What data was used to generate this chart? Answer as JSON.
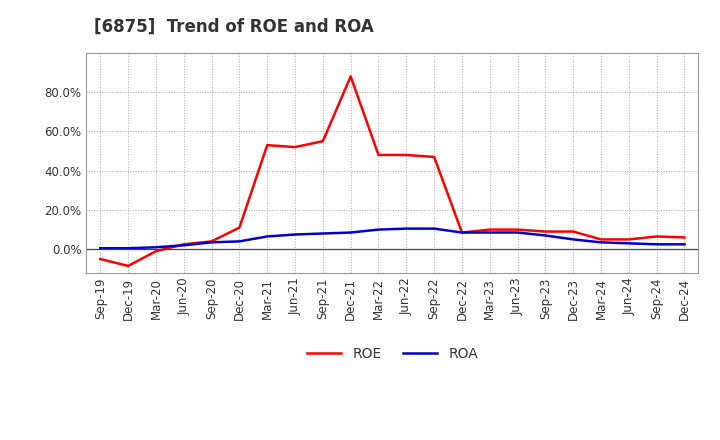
{
  "title": "[6875]  Trend of ROE and ROA",
  "x_labels": [
    "Sep-19",
    "Dec-19",
    "Mar-20",
    "Jun-20",
    "Sep-20",
    "Dec-20",
    "Mar-21",
    "Jun-21",
    "Sep-21",
    "Dec-21",
    "Mar-22",
    "Jun-22",
    "Sep-22",
    "Dec-22",
    "Mar-23",
    "Jun-23",
    "Sep-23",
    "Dec-23",
    "Mar-24",
    "Jun-24",
    "Sep-24",
    "Dec-24"
  ],
  "roe": [
    -5.0,
    -8.5,
    -1.0,
    2.5,
    4.0,
    11.0,
    53.0,
    52.0,
    55.0,
    88.0,
    48.0,
    48.0,
    47.0,
    8.5,
    10.0,
    10.0,
    9.0,
    9.0,
    5.0,
    5.0,
    6.5,
    6.0
  ],
  "roa": [
    0.5,
    0.5,
    1.0,
    2.0,
    3.5,
    4.0,
    6.5,
    7.5,
    8.0,
    8.5,
    10.0,
    10.5,
    10.5,
    8.5,
    8.5,
    8.5,
    7.0,
    5.0,
    3.5,
    3.0,
    2.5,
    2.5
  ],
  "roe_color": "#ff0000",
  "roa_color": "#0000cc",
  "background_color": "#ffffff",
  "grid_color": "#aaaaaa",
  "ylim": [
    -12,
    100
  ],
  "yticks": [
    0.0,
    20.0,
    40.0,
    60.0,
    80.0
  ],
  "legend_labels": [
    "ROE",
    "ROA"
  ],
  "line_width": 1.8,
  "title_color": "#333333",
  "title_fontsize": 12,
  "tick_fontsize": 8.5,
  "spine_color": "#999999"
}
